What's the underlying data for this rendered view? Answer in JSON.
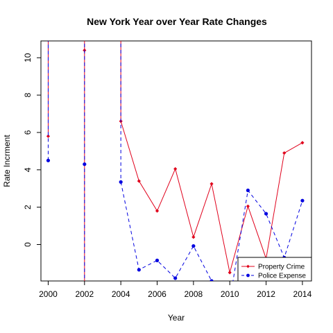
{
  "chart_data": {
    "type": "line",
    "title": "New York Year over Year Rate Changes",
    "xlabel": "Year",
    "ylabel": "Rate Incrment",
    "xlim": [
      1999.6,
      2014.5
    ],
    "ylim": [
      -1.95,
      10.9
    ],
    "x_ticks": [
      2000,
      2002,
      2004,
      2006,
      2008,
      2010,
      2012,
      2014
    ],
    "y_ticks": [
      0,
      2,
      4,
      6,
      8,
      10
    ],
    "legend_position": "bottom-right",
    "grid": false,
    "series": [
      {
        "name": "Property Crime",
        "color": "#e0001b",
        "line_style": "solid",
        "marker": "diamond",
        "x": [
          2000,
          2002,
          2004,
          2005,
          2006,
          2007,
          2008,
          2009,
          2010,
          2011,
          2012,
          2013,
          2014
        ],
        "y": [
          5.8,
          10.4,
          6.6,
          3.4,
          1.8,
          4.05,
          0.4,
          3.25,
          -1.5,
          2.05,
          -0.75,
          4.9,
          5.45
        ],
        "segments": [
          [
            2,
            3,
            4,
            5,
            6,
            7,
            8,
            9,
            10,
            11,
            12
          ]
        ]
      },
      {
        "name": "Police Expense",
        "color": "#0000e0",
        "line_style": "dashed",
        "marker": "circle",
        "x": [
          2000,
          2002,
          2004,
          2005,
          2006,
          2007,
          2008,
          2009,
          2010,
          2011,
          2012,
          2013,
          2014
        ],
        "y": [
          4.5,
          4.3,
          3.35,
          -1.35,
          -0.85,
          -1.8,
          -0.08,
          -1.95,
          -3.0,
          2.9,
          1.65,
          -0.7,
          2.35
        ],
        "segments": [
          [
            2,
            3,
            4,
            5,
            6,
            7,
            8,
            9,
            10,
            11,
            12,
            13
          ]
        ]
      }
    ]
  }
}
